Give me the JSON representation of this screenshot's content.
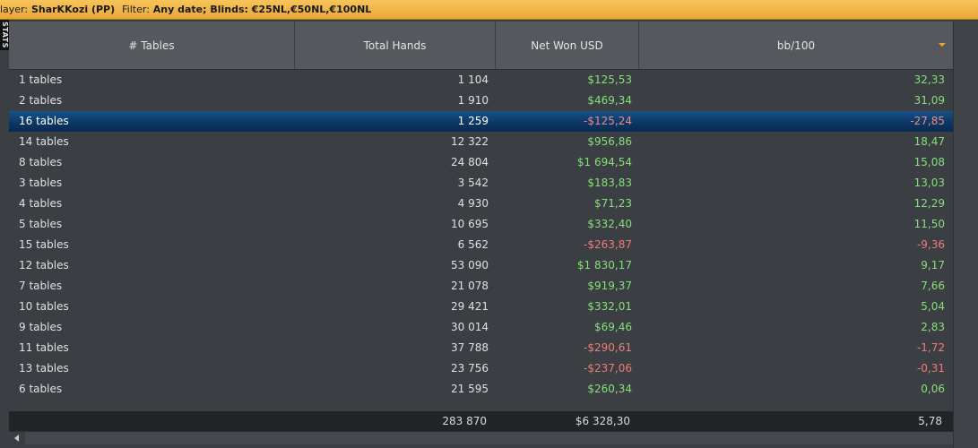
{
  "filter_bar": {
    "player_label": "layer:",
    "player_value": "SharKKozi (PP)",
    "filter_label": "Filter:",
    "filter_value": "Any date; Blinds: €25NL,€50NL,€100NL"
  },
  "side_tab": {
    "label": "STATS"
  },
  "columns": [
    "# Tables",
    "Total Hands",
    "Net Won USD",
    "bb/100"
  ],
  "sorted_column": "bb/100",
  "sort_direction": "descending",
  "rows": [
    {
      "tables": "1 tables",
      "hands": "1 104",
      "net": "$125,53",
      "bb": "32,33",
      "sign": "pos"
    },
    {
      "tables": "2 tables",
      "hands": "1 910",
      "net": "$469,34",
      "bb": "31,09",
      "sign": "pos"
    },
    {
      "tables": "16 tables",
      "hands": "1 259",
      "net": "-$125,24",
      "bb": "-27,85",
      "sign": "neg",
      "selected": true
    },
    {
      "tables": "14 tables",
      "hands": "12 322",
      "net": "$956,86",
      "bb": "18,47",
      "sign": "pos"
    },
    {
      "tables": "8 tables",
      "hands": "24 804",
      "net": "$1 694,54",
      "bb": "15,08",
      "sign": "pos"
    },
    {
      "tables": "3 tables",
      "hands": "3 542",
      "net": "$183,83",
      "bb": "13,03",
      "sign": "pos"
    },
    {
      "tables": "4 tables",
      "hands": "4 930",
      "net": "$71,23",
      "bb": "12,29",
      "sign": "pos"
    },
    {
      "tables": "5 tables",
      "hands": "10 695",
      "net": "$332,40",
      "bb": "11,50",
      "sign": "pos"
    },
    {
      "tables": "15 tables",
      "hands": "6 562",
      "net": "-$263,87",
      "bb": "-9,36",
      "sign": "neg"
    },
    {
      "tables": "12 tables",
      "hands": "53 090",
      "net": "$1 830,17",
      "bb": "9,17",
      "sign": "pos"
    },
    {
      "tables": "7 tables",
      "hands": "21 078",
      "net": "$919,37",
      "bb": "7,66",
      "sign": "pos"
    },
    {
      "tables": "10 tables",
      "hands": "29 421",
      "net": "$332,01",
      "bb": "5,04",
      "sign": "pos"
    },
    {
      "tables": "9 tables",
      "hands": "30 014",
      "net": "$69,46",
      "bb": "2,83",
      "sign": "pos"
    },
    {
      "tables": "11 tables",
      "hands": "37 788",
      "net": "-$290,61",
      "bb": "-1,72",
      "sign": "neg"
    },
    {
      "tables": "13 tables",
      "hands": "23 756",
      "net": "-$237,06",
      "bb": "-0,31",
      "sign": "neg"
    },
    {
      "tables": "6 tables",
      "hands": "21 595",
      "net": "$260,34",
      "bb": "0,06",
      "sign": "pos"
    }
  ],
  "totals": {
    "tables": "",
    "hands": "283 870",
    "net": "$6 328,30",
    "bb": "5,78"
  },
  "colors": {
    "positive": "#86e07a",
    "negative": "#f07c78",
    "selected_row": "#0d3766",
    "filter_bar": "#f2b54a",
    "sort_indicator": "#f2a233"
  }
}
